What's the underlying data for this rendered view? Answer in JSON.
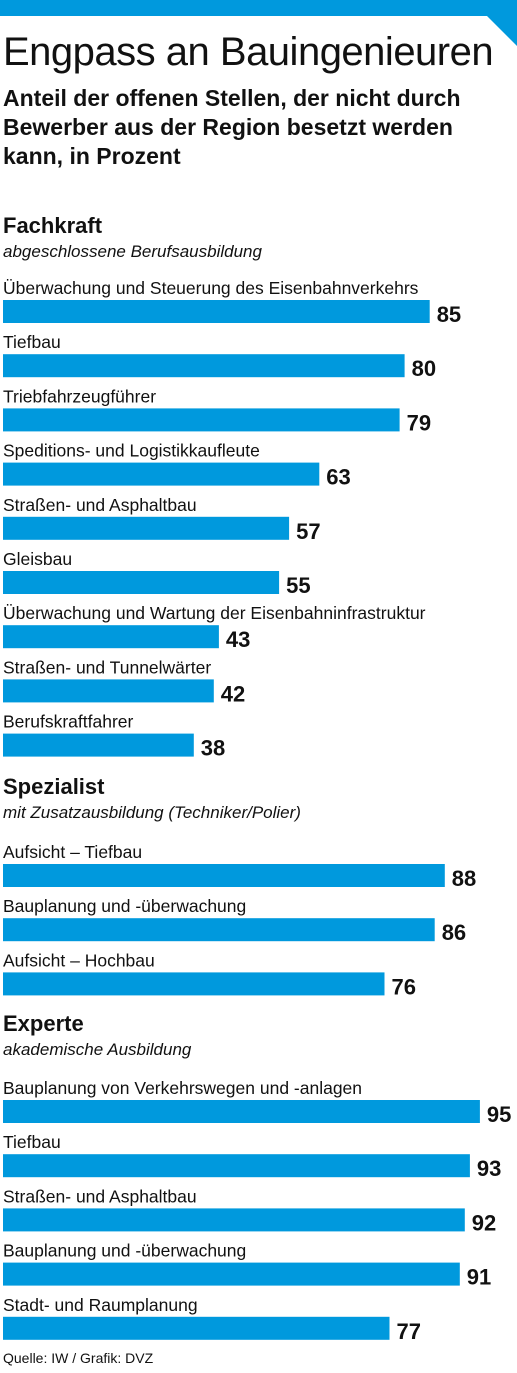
{
  "header": {
    "title": "Engpass an Bauingenieuren",
    "subtitle": "Anteil der offenen Stellen, der nicht durch Bewerber aus der Region besetzt werden kann, in Prozent"
  },
  "source": "Quelle: IW / Grafik: DVZ",
  "colors": {
    "bar": "#0099dd",
    "accent": "#0099dd"
  },
  "chart_data": {
    "type": "bar",
    "orientation": "horizontal",
    "grid": false,
    "title": "Engpass an Bauingenieuren",
    "subtitle": "Anteil der offenen Stellen, der nicht durch Bewerber aus der Region besetzt werden kann, in Prozent",
    "groups": [
      {
        "name": "Fachkraft",
        "description": "abgeschlossene Berufsausbildung",
        "items": [
          {
            "label": "Überwachung und Steuerung des Eisenbahnverkehrs",
            "value": 85
          },
          {
            "label": "Tiefbau",
            "value": 80
          },
          {
            "label": "Triebfahrzeugführer",
            "value": 79
          },
          {
            "label": "Speditions- und Logistikkaufleute",
            "value": 63
          },
          {
            "label": "Straßen- und Asphaltbau",
            "value": 57
          },
          {
            "label": "Gleisbau",
            "value": 55
          },
          {
            "label": "Überwachung und Wartung der Eisenbahninfrastruktur",
            "value": 43
          },
          {
            "label": "Straßen- und Tunnelwärter",
            "value": 42
          },
          {
            "label": "Berufskraftfahrer",
            "value": 38
          }
        ]
      },
      {
        "name": "Spezialist",
        "description": "mit Zusatzausbildung (Techniker/Polier)",
        "items": [
          {
            "label": "Aufsicht – Tiefbau",
            "value": 88
          },
          {
            "label": "Bauplanung und -überwachung",
            "value": 86
          },
          {
            "label": "Aufsicht – Hochbau",
            "value": 76
          }
        ]
      },
      {
        "name": "Experte",
        "description": "akademische Ausbildung",
        "items": [
          {
            "label": "Bauplanung von Verkehrswegen und -anlagen",
            "value": 95
          },
          {
            "label": "Tiefbau",
            "value": 93
          },
          {
            "label": "Straßen- und Asphaltbau",
            "value": 92
          },
          {
            "label": "Bauplanung und -überwachung",
            "value": 91
          },
          {
            "label": "Stadt- und Raumplanung",
            "value": 77
          }
        ]
      }
    ]
  }
}
